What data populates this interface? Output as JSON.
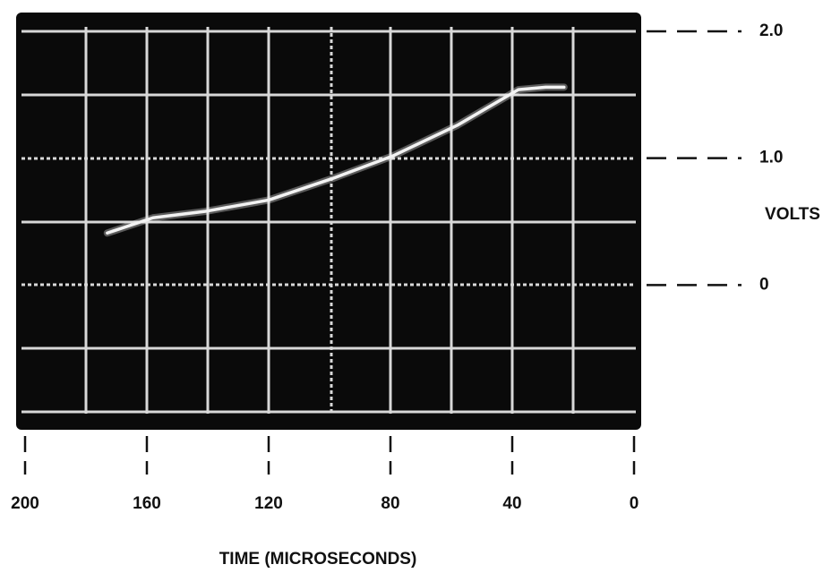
{
  "chart_data": {
    "type": "line",
    "x_label": "TIME (MICROSECONDS)",
    "y_label": "VOLTS",
    "xlim": [
      200,
      0
    ],
    "xticks": [
      200,
      160,
      120,
      80,
      40,
      0
    ],
    "ylim": [
      -1,
      2
    ],
    "yticks": [
      {
        "value": 2,
        "label": "2.0"
      },
      {
        "value": 1,
        "label": "1.0"
      },
      0
    ],
    "series": [
      {
        "color": "#f2f2f2",
        "x": [
          173,
          158,
          141,
          120,
          99,
          79,
          58,
          38,
          29,
          23
        ],
        "values": [
          0.41,
          0.53,
          0.58,
          0.67,
          0.84,
          1.02,
          1.26,
          1.54,
          1.56,
          1.56
        ]
      }
    ]
  }
}
